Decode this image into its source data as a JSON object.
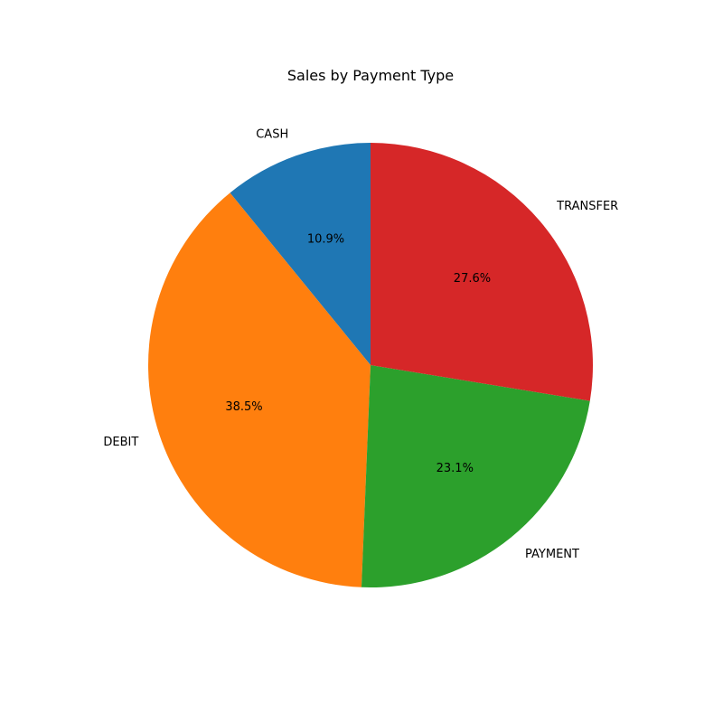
{
  "chart_data": {
    "type": "pie",
    "title": "Sales by Payment Type",
    "categories": [
      "CASH",
      "DEBIT",
      "PAYMENT",
      "TRANSFER"
    ],
    "values": [
      10.9,
      38.5,
      23.1,
      27.6
    ],
    "value_labels": [
      "10.9%",
      "38.5%",
      "23.1%",
      "27.6%"
    ],
    "colors": [
      "#1f77b4",
      "#ff7f0e",
      "#2ca02c",
      "#d62728"
    ],
    "start_angle_deg": 90,
    "direction": "counterclockwise",
    "legend": "none"
  }
}
